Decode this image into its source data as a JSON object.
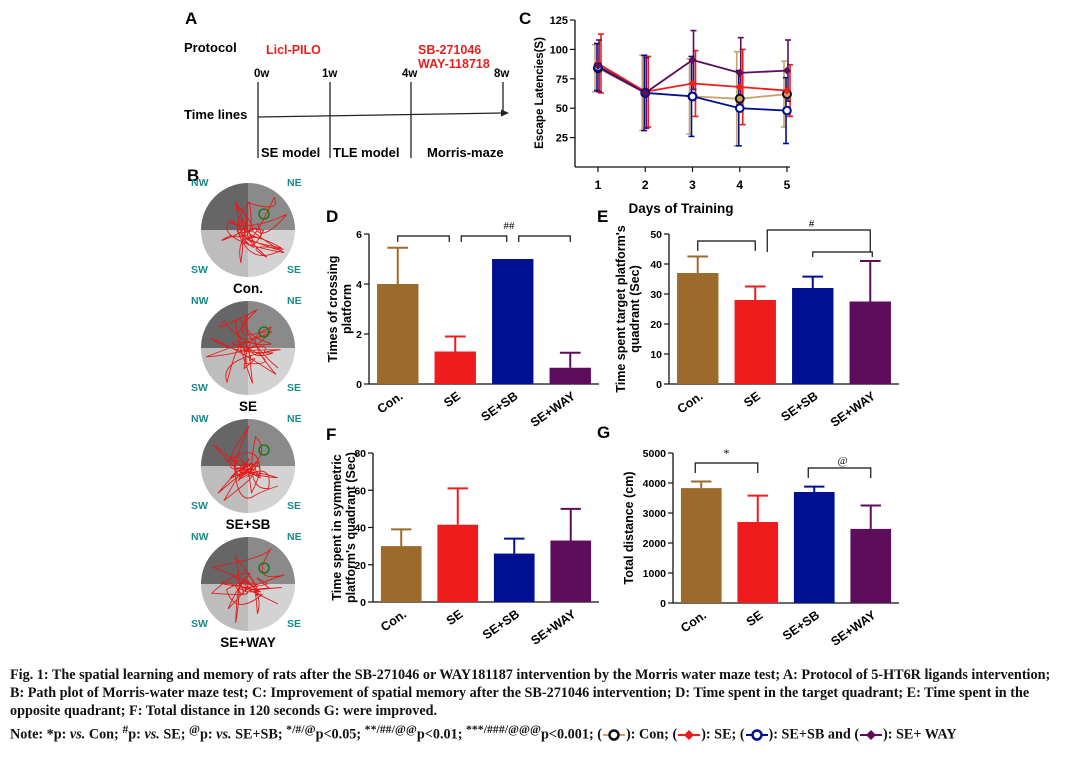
{
  "panel_letters": [
    "A",
    "B",
    "C",
    "D",
    "E",
    "F",
    "G"
  ],
  "protocol": {
    "label": "Protocol",
    "timelines_label": "Time lines",
    "drug1": "Licl-PILO",
    "drug2a": "SB-271046",
    "drug2b": "WAY-118718",
    "ticks": [
      "0w",
      "1w",
      "4w",
      "8w"
    ],
    "phases": [
      "SE model",
      "TLE model",
      "Morris-maze"
    ]
  },
  "paths": {
    "quadrants": [
      "NW",
      "NE",
      "SW",
      "SE"
    ],
    "groups": [
      "Con.",
      "SE",
      "SE+SB",
      "SE+WAY"
    ]
  },
  "colors": {
    "con": "#9c6b2c",
    "se": "#ee1c1c",
    "sb": "#001090",
    "way": "#5e0d5c",
    "con_line": "#c8a26a",
    "red_text": "#e32222",
    "teal": "#1a8a8a"
  },
  "chart_data": [
    {
      "panel": "C",
      "type": "line",
      "xlabel": "Days of Training",
      "ylabel": "Escape Latencies(S)",
      "x": [
        1,
        2,
        3,
        4,
        5
      ],
      "xlim": [
        1,
        5
      ],
      "ylim": [
        0,
        125
      ],
      "yticks": [
        25,
        50,
        75,
        100,
        125
      ],
      "series": [
        {
          "key": "con",
          "values": [
            84,
            63,
            60,
            58,
            62
          ],
          "err": [
            20,
            32,
            32,
            40,
            28
          ]
        },
        {
          "key": "se",
          "values": [
            88,
            64,
            71,
            68,
            65
          ],
          "err": [
            25,
            30,
            28,
            32,
            22
          ]
        },
        {
          "key": "sb",
          "values": [
            85,
            63,
            60,
            50,
            48
          ],
          "err": [
            20,
            32,
            34,
            32,
            28
          ]
        },
        {
          "key": "way",
          "values": [
            86,
            63,
            91,
            80,
            82
          ],
          "err": [
            22,
            30,
            25,
            30,
            26
          ]
        }
      ]
    },
    {
      "panel": "D",
      "type": "bar",
      "ylabel_lines": [
        "Times of crossing",
        "platform"
      ],
      "categories": [
        "Con.",
        "SE",
        "SE+SB",
        "SE+WAY"
      ],
      "values": [
        4.0,
        1.3,
        5.0,
        0.65
      ],
      "err": [
        1.45,
        0.6,
        0,
        0.6
      ],
      "ylim": [
        0,
        6
      ],
      "yticks": [
        0,
        2,
        4,
        6
      ],
      "annotations": [
        "##"
      ]
    },
    {
      "panel": "E",
      "type": "bar",
      "ylabel_lines": [
        "Time spent target platform's",
        "quadrant (Sec)"
      ],
      "categories": [
        "Con.",
        "SE",
        "SE+SB",
        "SE+WAY"
      ],
      "values": [
        37,
        28,
        32,
        27.5
      ],
      "err": [
        5.5,
        4.5,
        3.8,
        13.5
      ],
      "ylim": [
        0,
        50
      ],
      "yticks": [
        0,
        10,
        20,
        30,
        40,
        50
      ],
      "annotations": [
        "#"
      ]
    },
    {
      "panel": "F",
      "type": "bar",
      "ylabel_lines": [
        "Time spent in symmetric",
        "platform's quadrant (Sec)"
      ],
      "categories": [
        "Con.",
        "SE",
        "SE+SB",
        "SE+WAY"
      ],
      "values": [
        30,
        41.5,
        26,
        33
      ],
      "err": [
        9,
        19.5,
        8,
        17
      ],
      "ylim": [
        0,
        80
      ],
      "yticks": [
        0,
        20,
        40,
        60,
        80
      ],
      "annotations": []
    },
    {
      "panel": "G",
      "type": "bar",
      "ylabel_lines": [
        "Total distance (cm)"
      ],
      "categories": [
        "Con.",
        "SE",
        "SE+SB",
        "SE+WAY"
      ],
      "values": [
        3830,
        2700,
        3700,
        2470
      ],
      "err": [
        220,
        880,
        180,
        780
      ],
      "ylim": [
        0,
        5000
      ],
      "yticks": [
        0,
        1000,
        2000,
        3000,
        4000,
        5000
      ],
      "annotations": [
        "*",
        "@"
      ]
    }
  ],
  "caption": {
    "fig_label": "Fig. 1:",
    "text": "The spatial learning and memory of rats after the SB-271046 or WAY181187 intervention by the Morris water maze test; A: Protocol of 5-HT6R ligands intervention; B: Path plot of Morris-water maze test; C: Improvement of spatial memory after the SB-271046 intervention; D: Time spent in the target quadrant; E: Time spent in the opposite quadrant; F: Total distance in 120 seconds G: were improved.",
    "note_label": "Note:",
    "note_1": "*p:",
    "note_vs": "vs.",
    "note_con": "Con;",
    "note_2_mark": "#",
    "note_2": "p:",
    "note_se": "SE;",
    "note_3_mark": "@",
    "note_3": "p:",
    "note_sesb": "SE+SB;",
    "note_p1_mark": "*/#/@",
    "note_p1": "p<0.05;",
    "note_p2_mark": "**/##/@@",
    "note_p2": "p<0.01;",
    "note_p3_mark": "***/###/@@@",
    "note_p3": "p<0.001;",
    "legend_con": "): Con;",
    "legend_se": "): SE;",
    "legend_sb": "): SE+SB and",
    "legend_way": "): SE+ WAY"
  }
}
